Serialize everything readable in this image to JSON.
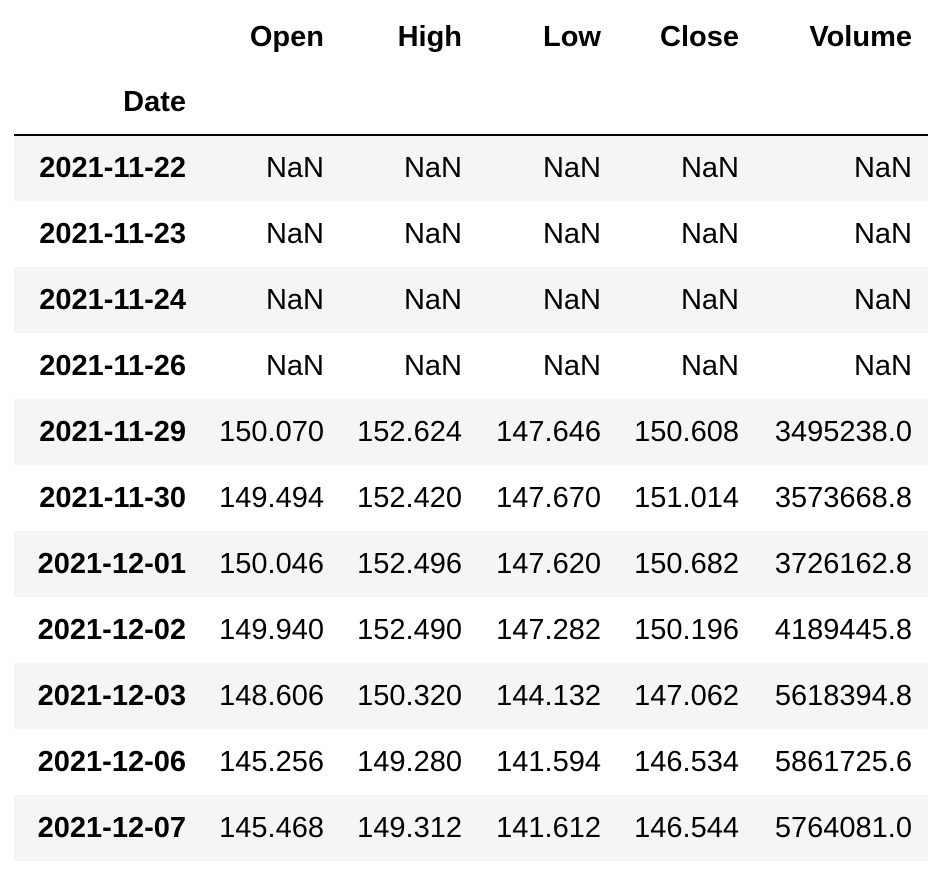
{
  "table": {
    "index_name": "Date",
    "columns": [
      "Open",
      "High",
      "Low",
      "Close",
      "Volume"
    ],
    "rows": [
      {
        "date": "2021-11-22",
        "values": [
          "NaN",
          "NaN",
          "NaN",
          "NaN",
          "NaN"
        ]
      },
      {
        "date": "2021-11-23",
        "values": [
          "NaN",
          "NaN",
          "NaN",
          "NaN",
          "NaN"
        ]
      },
      {
        "date": "2021-11-24",
        "values": [
          "NaN",
          "NaN",
          "NaN",
          "NaN",
          "NaN"
        ]
      },
      {
        "date": "2021-11-26",
        "values": [
          "NaN",
          "NaN",
          "NaN",
          "NaN",
          "NaN"
        ]
      },
      {
        "date": "2021-11-29",
        "values": [
          "150.070",
          "152.624",
          "147.646",
          "150.608",
          "3495238.0"
        ]
      },
      {
        "date": "2021-11-30",
        "values": [
          "149.494",
          "152.420",
          "147.670",
          "151.014",
          "3573668.8"
        ]
      },
      {
        "date": "2021-12-01",
        "values": [
          "150.046",
          "152.496",
          "147.620",
          "150.682",
          "3726162.8"
        ]
      },
      {
        "date": "2021-12-02",
        "values": [
          "149.940",
          "152.490",
          "147.282",
          "150.196",
          "4189445.8"
        ]
      },
      {
        "date": "2021-12-03",
        "values": [
          "148.606",
          "150.320",
          "144.132",
          "147.062",
          "5618394.8"
        ]
      },
      {
        "date": "2021-12-06",
        "values": [
          "145.256",
          "149.280",
          "141.594",
          "146.534",
          "5861725.6"
        ]
      },
      {
        "date": "2021-12-07",
        "values": [
          "145.468",
          "149.312",
          "141.612",
          "146.544",
          "5764081.0"
        ]
      }
    ]
  },
  "colors": {
    "stripe": "#f5f5f5",
    "background": "#ffffff",
    "header_rule": "#000000"
  }
}
